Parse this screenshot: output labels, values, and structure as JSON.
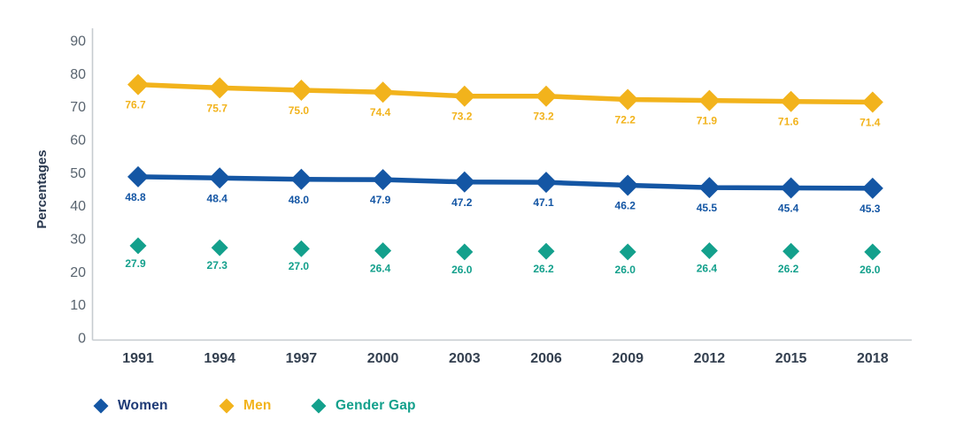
{
  "chart_data": {
    "type": "line",
    "title": "",
    "xlabel": "",
    "ylabel": "Percentages",
    "ylim": [
      0,
      90
    ],
    "ytick_step": 10,
    "grid": false,
    "legend_position": "bottom-left",
    "categories": [
      "1991",
      "1994",
      "1997",
      "2000",
      "2003",
      "2006",
      "2009",
      "2012",
      "2015",
      "2018"
    ],
    "series": [
      {
        "name": "Women",
        "draw_line": true,
        "color": "#1456A4",
        "label_color": "#1456A4",
        "legend_text_color": "#1E3A76",
        "values": [
          48.8,
          48.4,
          48.0,
          47.9,
          47.2,
          47.1,
          46.2,
          45.5,
          45.4,
          45.3
        ]
      },
      {
        "name": "Men",
        "draw_line": true,
        "color": "#F2B31C",
        "label_color": "#F2B31C",
        "legend_text_color": "#F2B31C",
        "values": [
          76.7,
          75.7,
          75.0,
          74.4,
          73.2,
          73.2,
          72.2,
          71.9,
          71.6,
          71.4
        ]
      },
      {
        "name": "Gender Gap",
        "draw_line": false,
        "color": "#13A08C",
        "label_color": "#13A08C",
        "legend_text_color": "#13A08C",
        "values": [
          27.9,
          27.3,
          27.0,
          26.4,
          26.0,
          26.2,
          26.0,
          26.4,
          26.2,
          26.0
        ]
      }
    ],
    "style_colors": {
      "axis_line": "#C6CBD0",
      "y_tick_text": "#59646F",
      "x_tick_text": "#333F4F",
      "axis_title_text": "#2A3950"
    }
  }
}
